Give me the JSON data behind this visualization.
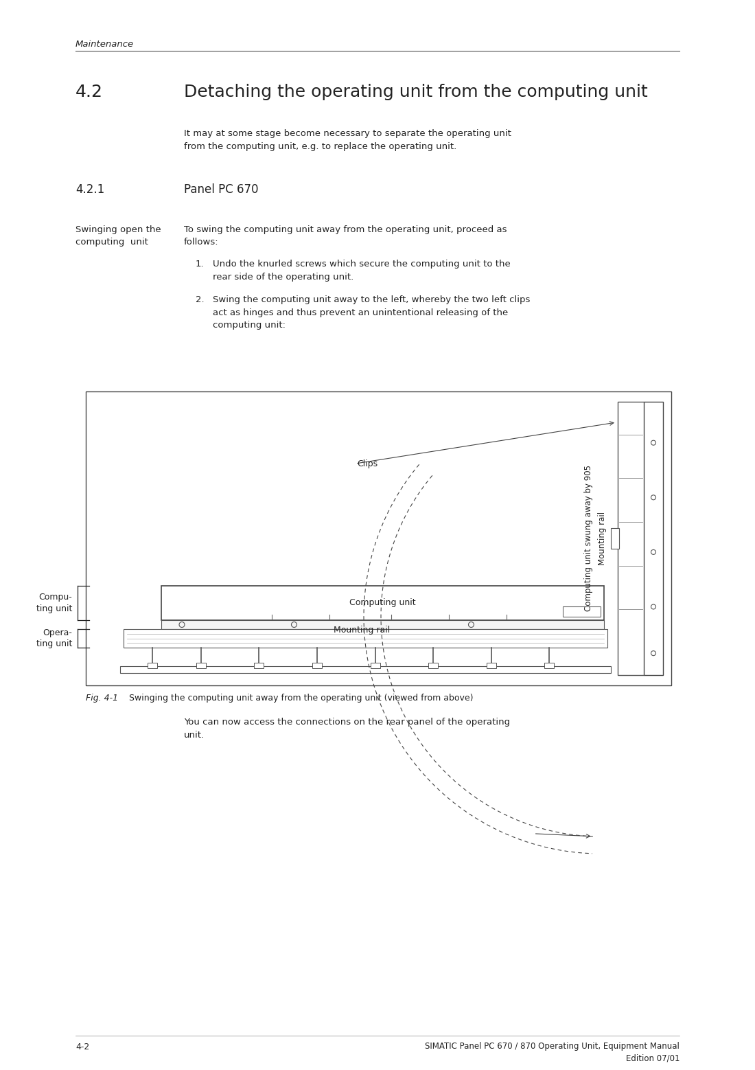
{
  "bg_color": "#ffffff",
  "text_color": "#222222",
  "header_italic": "Maintenance",
  "section_num": "4.2",
  "section_title": "Detaching the operating unit from the computing unit",
  "intro_text": "It may at some stage become necessary to separate the operating unit\nfrom the computing unit, e.g. to replace the operating unit.",
  "subsection_num": "4.2.1",
  "subsection_title": "Panel PC 670",
  "left_label": "Swinging open the\ncomputing  unit",
  "right_intro": "To swing the computing unit away from the operating unit, proceed as\nfollows:",
  "step1": "Undo the knurled screws which secure the computing unit to the\nrear side of the operating unit.",
  "step2": "Swing the computing unit away to the left, whereby the two left clips\nact as hinges and thus prevent an unintentional releasing of the\ncomputing unit:",
  "fig_caption_num": "Fig. 4-1",
  "fig_caption_text": "Swinging the computing unit away from the operating unit (viewed from above)",
  "closing_text": "You can now access the connections on the rear panel of the operating\nunit.",
  "footer_left": "4-2",
  "footer_right": "SIMATIC Panel PC 670 / 870 Operating Unit, Equipment Manual\nEdition 07/01",
  "diagram_label_clips": "Clips",
  "diagram_label_computing_unit": "Computing unit",
  "diagram_label_mounting_rail": "Mounting rail",
  "diagram_label_computing_unit_left": "Compu-\nting unit",
  "diagram_label_operating_unit_left": "Opera-\nting unit",
  "diagram_rotated_mounting_rail": "Mounting rail",
  "diagram_rotated_computing_unit": "Computing unit swung away by 905"
}
